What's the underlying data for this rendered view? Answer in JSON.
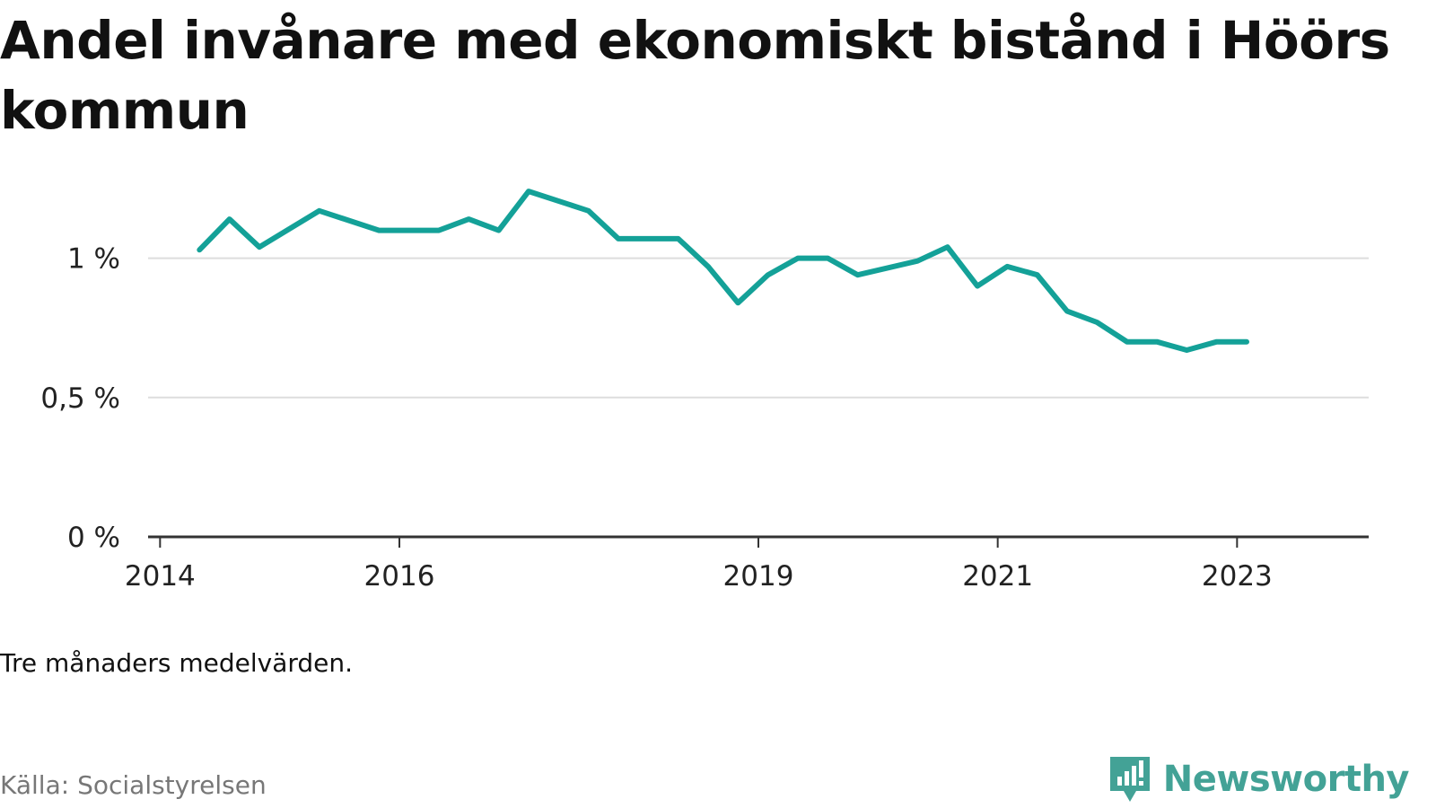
{
  "title": "Andel invånare med ekonomiskt bistånd i Höörs kommun",
  "note": "Tre månaders medelvärden.",
  "source": "Källa: Socialstyrelsen",
  "brand": {
    "name": "Newsworthy",
    "icon": "newsworthy-logo-icon",
    "color": "#43a296"
  },
  "chart_data": {
    "type": "line",
    "title": "Andel invånare med ekonomiskt bistånd i Höörs kommun",
    "xlabel": "",
    "ylabel": "",
    "ylim": [
      0,
      1.25
    ],
    "grid": true,
    "y_ticks": [
      {
        "value": 0,
        "label": "0 %"
      },
      {
        "value": 0.5,
        "label": "0,5 %"
      },
      {
        "value": 1,
        "label": "1 %"
      }
    ],
    "x_ticks": [
      {
        "value": 2014.0,
        "label": "2014"
      },
      {
        "value": 2016.0,
        "label": "2016"
      },
      {
        "value": 2019.0,
        "label": "2019"
      },
      {
        "value": 2021.0,
        "label": "2021"
      },
      {
        "value": 2023.0,
        "label": "2023"
      }
    ],
    "xlim": [
      2013.9,
      2024.1
    ],
    "colors": {
      "line": "#14a198",
      "grid": "#dddddd",
      "axis": "#333333"
    },
    "series": [
      {
        "values": [
          {
            "x": 2014.33,
            "y": 1.03
          },
          {
            "x": 2014.58,
            "y": 1.14
          },
          {
            "x": 2014.83,
            "y": 1.04
          },
          {
            "x": 2015.33,
            "y": 1.17
          },
          {
            "x": 2015.83,
            "y": 1.1
          },
          {
            "x": 2016.33,
            "y": 1.1
          },
          {
            "x": 2016.58,
            "y": 1.14
          },
          {
            "x": 2016.83,
            "y": 1.1
          },
          {
            "x": 2017.08,
            "y": 1.24
          },
          {
            "x": 2017.58,
            "y": 1.17
          },
          {
            "x": 2017.83,
            "y": 1.07
          },
          {
            "x": 2018.33,
            "y": 1.07
          },
          {
            "x": 2018.58,
            "y": 0.97
          },
          {
            "x": 2018.83,
            "y": 0.84
          },
          {
            "x": 2019.08,
            "y": 0.94
          },
          {
            "x": 2019.33,
            "y": 1.0
          },
          {
            "x": 2019.58,
            "y": 1.0
          },
          {
            "x": 2019.83,
            "y": 0.94
          },
          {
            "x": 2020.33,
            "y": 0.99
          },
          {
            "x": 2020.58,
            "y": 1.04
          },
          {
            "x": 2020.83,
            "y": 0.9
          },
          {
            "x": 2021.08,
            "y": 0.97
          },
          {
            "x": 2021.33,
            "y": 0.94
          },
          {
            "x": 2021.58,
            "y": 0.81
          },
          {
            "x": 2021.83,
            "y": 0.77
          },
          {
            "x": 2022.08,
            "y": 0.7
          },
          {
            "x": 2022.33,
            "y": 0.7
          },
          {
            "x": 2022.58,
            "y": 0.67
          },
          {
            "x": 2022.83,
            "y": 0.7
          },
          {
            "x": 2023.08,
            "y": 0.7
          }
        ]
      }
    ]
  }
}
